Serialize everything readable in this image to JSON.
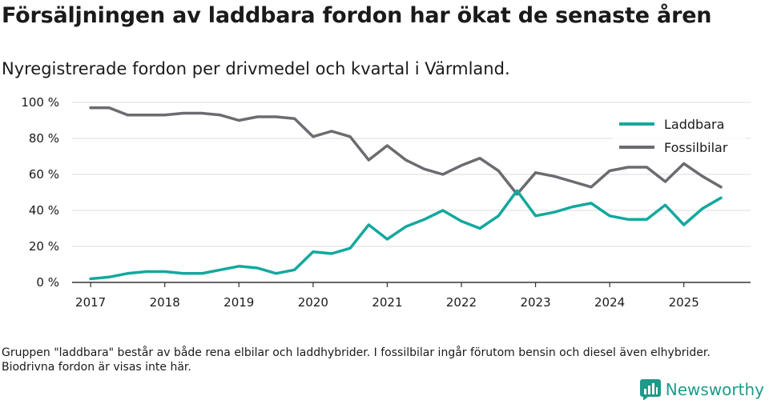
{
  "title": "Försäljningen av laddbara fordon har ökat de senaste åren",
  "subtitle": "Nyregistrerade fordon per drivmedel och kvartal i Värmland.",
  "footnote": "Gruppen \"laddbara\" består av både rena elbilar och laddhybrider. I fossilbilar ingår förutom bensin och diesel även elhybrider. Biodrivna fordon är visas inte här.",
  "brand": {
    "name": "Newsworthy",
    "icon": "bar-chart-logo-icon"
  },
  "colors": {
    "laddbara": "#13a89e",
    "fossil": "#6b6b70",
    "grid": "#dcdcdc",
    "axis": "#333333"
  },
  "chart_data": {
    "type": "line",
    "title": "Försäljningen av laddbara fordon har ökat de senaste åren",
    "xlabel": "",
    "ylabel": "",
    "ylim": [
      0,
      100
    ],
    "xlim": [
      2016.75,
      2025.9
    ],
    "yticks": [
      0,
      20,
      40,
      60,
      80,
      100
    ],
    "ytick_labels": [
      "0 %",
      "20 %",
      "40 %",
      "60 %",
      "80 %",
      "100 %"
    ],
    "xticks": [
      2017,
      2018,
      2019,
      2020,
      2021,
      2022,
      2023,
      2024,
      2025
    ],
    "xtick_labels": [
      "2017",
      "2018",
      "2019",
      "2020",
      "2021",
      "2022",
      "2023",
      "2024",
      "2025"
    ],
    "grid": true,
    "legend_position": "top-right",
    "x": [
      2017,
      2017.25,
      2017.5,
      2017.75,
      2018,
      2018.25,
      2018.5,
      2018.75,
      2019,
      2019.25,
      2019.5,
      2019.75,
      2020,
      2020.25,
      2020.5,
      2020.75,
      2021,
      2021.25,
      2021.5,
      2021.75,
      2022,
      2022.25,
      2022.5,
      2022.75,
      2023,
      2023.25,
      2023.5,
      2023.75,
      2024,
      2024.25,
      2024.5,
      2024.75,
      2025,
      2025.25,
      2025.5
    ],
    "series": [
      {
        "name": "Laddbara",
        "color": "#13a89e",
        "values": [
          2,
          3,
          5,
          6,
          6,
          5,
          5,
          7,
          9,
          8,
          5,
          7,
          17,
          16,
          19,
          32,
          24,
          31,
          35,
          40,
          34,
          30,
          37,
          51,
          37,
          39,
          42,
          44,
          37,
          35,
          35,
          43,
          32,
          41,
          47
        ]
      },
      {
        "name": "Fossilbilar",
        "color": "#6b6b70",
        "values": [
          97,
          97,
          93,
          93,
          93,
          94,
          94,
          93,
          90,
          92,
          92,
          91,
          81,
          84,
          81,
          68,
          76,
          68,
          63,
          60,
          65,
          69,
          62,
          49,
          61,
          59,
          56,
          53,
          62,
          64,
          64,
          56,
          66,
          59,
          53
        ]
      }
    ]
  }
}
